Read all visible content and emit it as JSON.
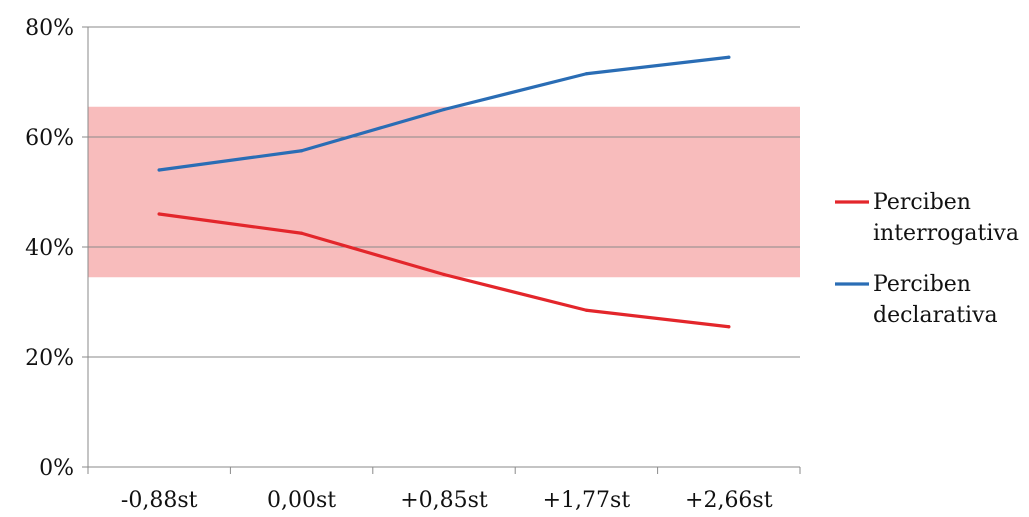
{
  "chart_data": {
    "type": "line",
    "categories": [
      "-0,88st",
      "0,00st",
      "+0,85st",
      "+1,77st",
      "+2,66st"
    ],
    "series": [
      {
        "name": "Perciben interrogativa",
        "name_lines": [
          "Perciben",
          "interrogativa"
        ],
        "values": [
          46,
          42.5,
          35,
          28.5,
          25.5
        ],
        "color": "#e3262b"
      },
      {
        "name": "Perciben declarativa",
        "name_lines": [
          "Perciben",
          "declarativa"
        ],
        "values": [
          54,
          57.5,
          65,
          71.5,
          74.5
        ],
        "color": "#2a6db5"
      }
    ],
    "ylim": [
      0,
      80
    ],
    "yticks": [
      0,
      20,
      40,
      60,
      80
    ],
    "ytick_labels": [
      "0%",
      "20%",
      "40%",
      "60%",
      "80%"
    ],
    "band": {
      "from": 34.5,
      "to": 65.5,
      "color": "#f8bcbc"
    },
    "grid": true,
    "legend": "right",
    "title": "",
    "xlabel": "",
    "ylabel": ""
  }
}
